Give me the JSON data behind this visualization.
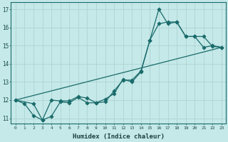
{
  "xlabel": "Humidex (Indice chaleur)",
  "bg_color": "#c5e8e8",
  "line_color": "#1a6b6b",
  "grid_color": "#aed4d4",
  "xlim": [
    -0.5,
    23.5
  ],
  "ylim": [
    10.7,
    17.4
  ],
  "yticks": [
    11,
    12,
    13,
    14,
    15,
    16,
    17
  ],
  "xticks": [
    0,
    1,
    2,
    3,
    4,
    5,
    6,
    7,
    8,
    9,
    10,
    11,
    12,
    13,
    14,
    15,
    16,
    17,
    18,
    19,
    20,
    21,
    22,
    23
  ],
  "line1_x": [
    0,
    1,
    2,
    3,
    4,
    5,
    6,
    7,
    8,
    9,
    10,
    11,
    12,
    13,
    14,
    15,
    16,
    17,
    18,
    19,
    20,
    21,
    22,
    23
  ],
  "line1_y": [
    12.0,
    11.8,
    11.15,
    10.9,
    11.1,
    11.9,
    11.85,
    12.15,
    11.85,
    11.85,
    11.9,
    12.5,
    13.1,
    13.1,
    13.6,
    15.3,
    17.0,
    16.2,
    16.3,
    15.5,
    15.5,
    14.9,
    15.0,
    14.9
  ],
  "line2_x": [
    0,
    2,
    3,
    4,
    5,
    6,
    7,
    8,
    9,
    10,
    11,
    12,
    13,
    14,
    15,
    16,
    17,
    18,
    19,
    20,
    21,
    22,
    23
  ],
  "line2_y": [
    12.0,
    11.8,
    10.9,
    12.0,
    11.95,
    11.95,
    12.2,
    12.1,
    11.85,
    12.05,
    12.35,
    13.15,
    13.0,
    13.55,
    15.3,
    16.2,
    16.3,
    16.3,
    15.5,
    15.5,
    15.5,
    14.95,
    14.9
  ],
  "line3_x": [
    0,
    23
  ],
  "line3_y": [
    12.0,
    14.9
  ]
}
